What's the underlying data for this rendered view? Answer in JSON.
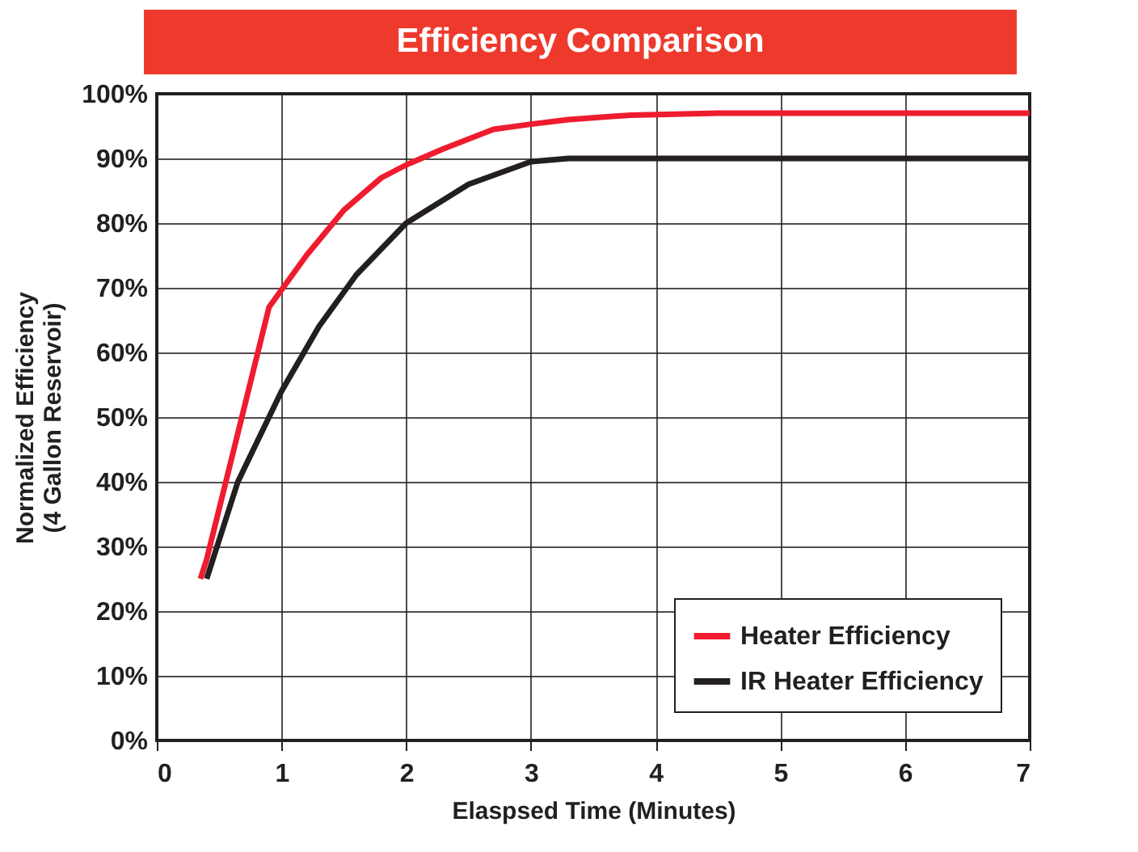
{
  "chart_data": {
    "type": "line",
    "title": "Efficiency Comparison",
    "xlabel": "Elaspsed Time (Minutes)",
    "ylabel": "Normalized Efficiency\n(4 Gallon Reservoir)",
    "xlim": [
      0,
      7
    ],
    "xticks": [
      0,
      1,
      2,
      3,
      4,
      5,
      6,
      7
    ],
    "ylim": [
      0,
      100
    ],
    "yticks": [
      {
        "value": 0,
        "label": "0%"
      },
      {
        "value": 10,
        "label": "10%"
      },
      {
        "value": 20,
        "label": "20%"
      },
      {
        "value": 30,
        "label": "30%"
      },
      {
        "value": 40,
        "label": "40%"
      },
      {
        "value": 50,
        "label": "50%"
      },
      {
        "value": 60,
        "label": "60%"
      },
      {
        "value": 70,
        "label": "70%"
      },
      {
        "value": 80,
        "label": "80%"
      },
      {
        "value": 90,
        "label": "90%"
      },
      {
        "value": 100,
        "label": "100%"
      }
    ],
    "grid": true,
    "legend": "bottom right",
    "marker": "none",
    "line_style": "solid",
    "series": [
      {
        "name": "Heater Efficiency",
        "color": "#ee1c2e",
        "x": [
          0.35,
          0.4,
          0.9,
          1.2,
          1.5,
          1.8,
          2,
          2.3,
          2.7,
          3,
          3.3,
          3.8,
          4.5,
          7
        ],
        "values": [
          25,
          28,
          67,
          75,
          82,
          87,
          89,
          91.5,
          94.5,
          95.3,
          96,
          96.7,
          97,
          97
        ]
      },
      {
        "name": "IR Heater Efficiency",
        "color": "#231f20",
        "x": [
          0.4,
          0.65,
          1,
          1.3,
          1.6,
          2,
          2.5,
          3,
          3.3,
          7
        ],
        "values": [
          25,
          40,
          54,
          64,
          72,
          80,
          86,
          89.5,
          90,
          90
        ]
      }
    ]
  }
}
